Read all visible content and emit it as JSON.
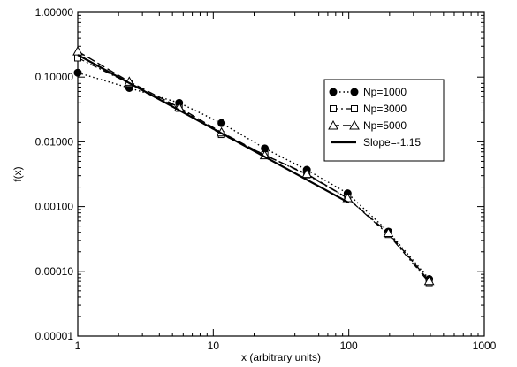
{
  "chart_data": {
    "type": "line",
    "xlabel": "x (arbitrary units)",
    "ylabel": "f(x)",
    "x_scale": "log",
    "y_scale": "log",
    "xlim": [
      1,
      1000
    ],
    "ylim": [
      1e-05,
      1
    ],
    "x_ticks": [
      1,
      10,
      100,
      1000
    ],
    "x_tick_labels": [
      "1",
      "10",
      "100",
      "1000"
    ],
    "y_ticks": [
      1e-05,
      0.0001,
      0.001,
      0.01,
      0.1,
      1
    ],
    "y_tick_labels": [
      "0.00001",
      "0.00010",
      "0.00100",
      "0.01000",
      "0.10000",
      "1.00000"
    ],
    "grid": false,
    "legend_position": "right",
    "series": [
      {
        "name": "Np=1000",
        "marker": "filled-circle",
        "line_style": "dotted",
        "x": [
          1,
          2.4,
          5.6,
          11.5,
          24,
          49,
          98,
          196,
          392
        ],
        "y": [
          0.117,
          0.068,
          0.04,
          0.0195,
          0.0079,
          0.0037,
          0.0016,
          0.00041,
          7.6e-05
        ]
      },
      {
        "name": "Np=3000",
        "marker": "open-square",
        "line_style": "dash-dot",
        "x": [
          1,
          2.4,
          5.6,
          11.5,
          24,
          49,
          98,
          196,
          392
        ],
        "y": [
          0.198,
          0.08,
          0.033,
          0.013,
          0.0063,
          0.0031,
          0.00135,
          0.00037,
          6.7e-05
        ]
      },
      {
        "name": "Np=5000",
        "marker": "open-triangle",
        "line_style": "dashed",
        "x": [
          1,
          2.4,
          5.6,
          11.5,
          24,
          49,
          98,
          196,
          392
        ],
        "y": [
          0.25,
          0.085,
          0.034,
          0.014,
          0.0062,
          0.0032,
          0.00135,
          0.00039,
          7.1e-05
        ]
      },
      {
        "name": "Slope=-1.15",
        "marker": "none",
        "line_style": "solid",
        "x": [
          1,
          100
        ],
        "y": [
          0.22,
          0.00115
        ]
      }
    ]
  }
}
